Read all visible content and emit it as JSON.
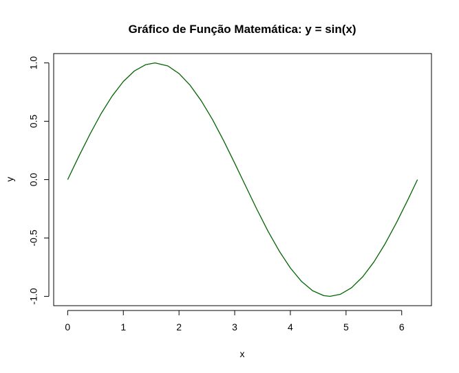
{
  "chart_data": {
    "type": "line",
    "title": "Gráfico de Função Matemática: y = sin(x)",
    "xlabel": "x",
    "ylabel": "y",
    "xlim": [
      -0.2513,
      6.5345
    ],
    "ylim": [
      -1.08,
      1.08
    ],
    "x_ticks": [
      0,
      1,
      2,
      3,
      4,
      5,
      6
    ],
    "x_tick_labels": [
      "0",
      "1",
      "2",
      "3",
      "4",
      "5",
      "6"
    ],
    "y_ticks": [
      -1.0,
      -0.5,
      0.0,
      0.5,
      1.0
    ],
    "y_tick_labels": [
      "-1.0",
      "-0.5",
      "0.0",
      "0.5",
      "1.0"
    ],
    "grid": false,
    "legend": "none",
    "series": [
      {
        "color": "#006400",
        "x": [
          0,
          0.2,
          0.4,
          0.6,
          0.8,
          1.0,
          1.2,
          1.4,
          1.5708,
          1.8,
          2.0,
          2.2,
          2.4,
          2.6,
          2.8,
          3.0,
          3.1416,
          3.4,
          3.6,
          3.8,
          4.0,
          4.2,
          4.4,
          4.6,
          4.7124,
          4.9,
          5.1,
          5.3,
          5.5,
          5.7,
          5.9,
          6.1,
          6.2832
        ],
        "y": [
          0,
          0.199,
          0.389,
          0.565,
          0.717,
          0.841,
          0.932,
          0.985,
          1.0,
          0.974,
          0.909,
          0.808,
          0.675,
          0.516,
          0.335,
          0.141,
          0.0,
          -0.256,
          -0.443,
          -0.612,
          -0.757,
          -0.872,
          -0.952,
          -0.994,
          -1.0,
          -0.982,
          -0.926,
          -0.832,
          -0.706,
          -0.551,
          -0.374,
          -0.183,
          0.0
        ]
      }
    ]
  }
}
